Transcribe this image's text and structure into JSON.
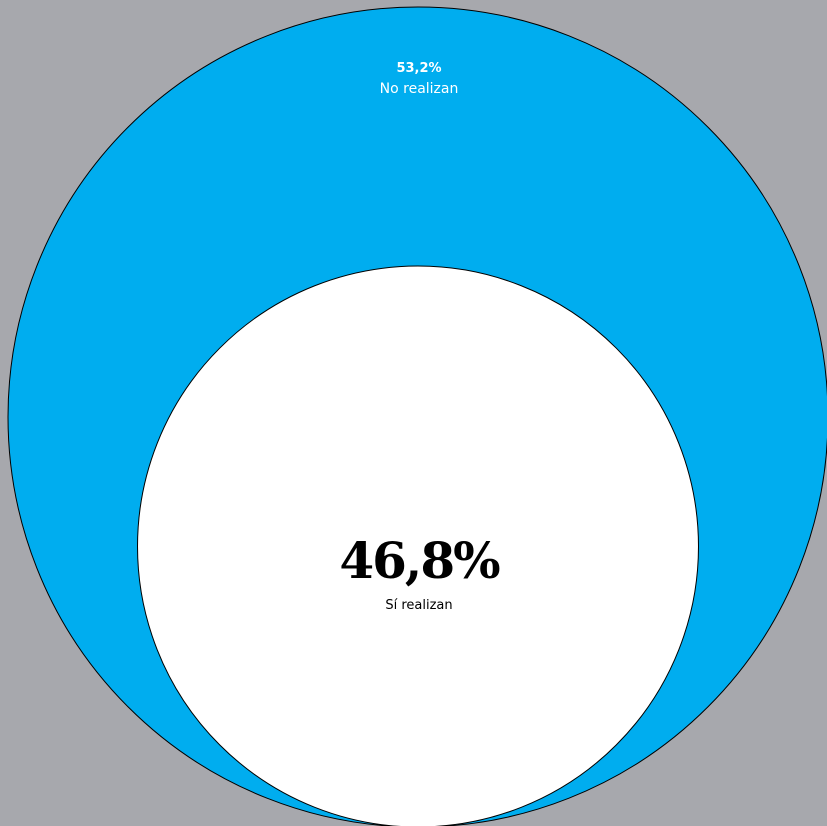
{
  "chart_data": {
    "type": "nested-circle",
    "series": [
      {
        "name": "No realizan",
        "value": 53.2,
        "value_label": "53,2%",
        "label": "No realizan",
        "color": "#00adef"
      },
      {
        "name": "Sí realizan",
        "value": 46.8,
        "value_label": "46,8%",
        "label": "Sí realizan",
        "color": "#ffffff"
      }
    ],
    "background_color": "#a7a8ad",
    "outline_color": "#000000"
  }
}
